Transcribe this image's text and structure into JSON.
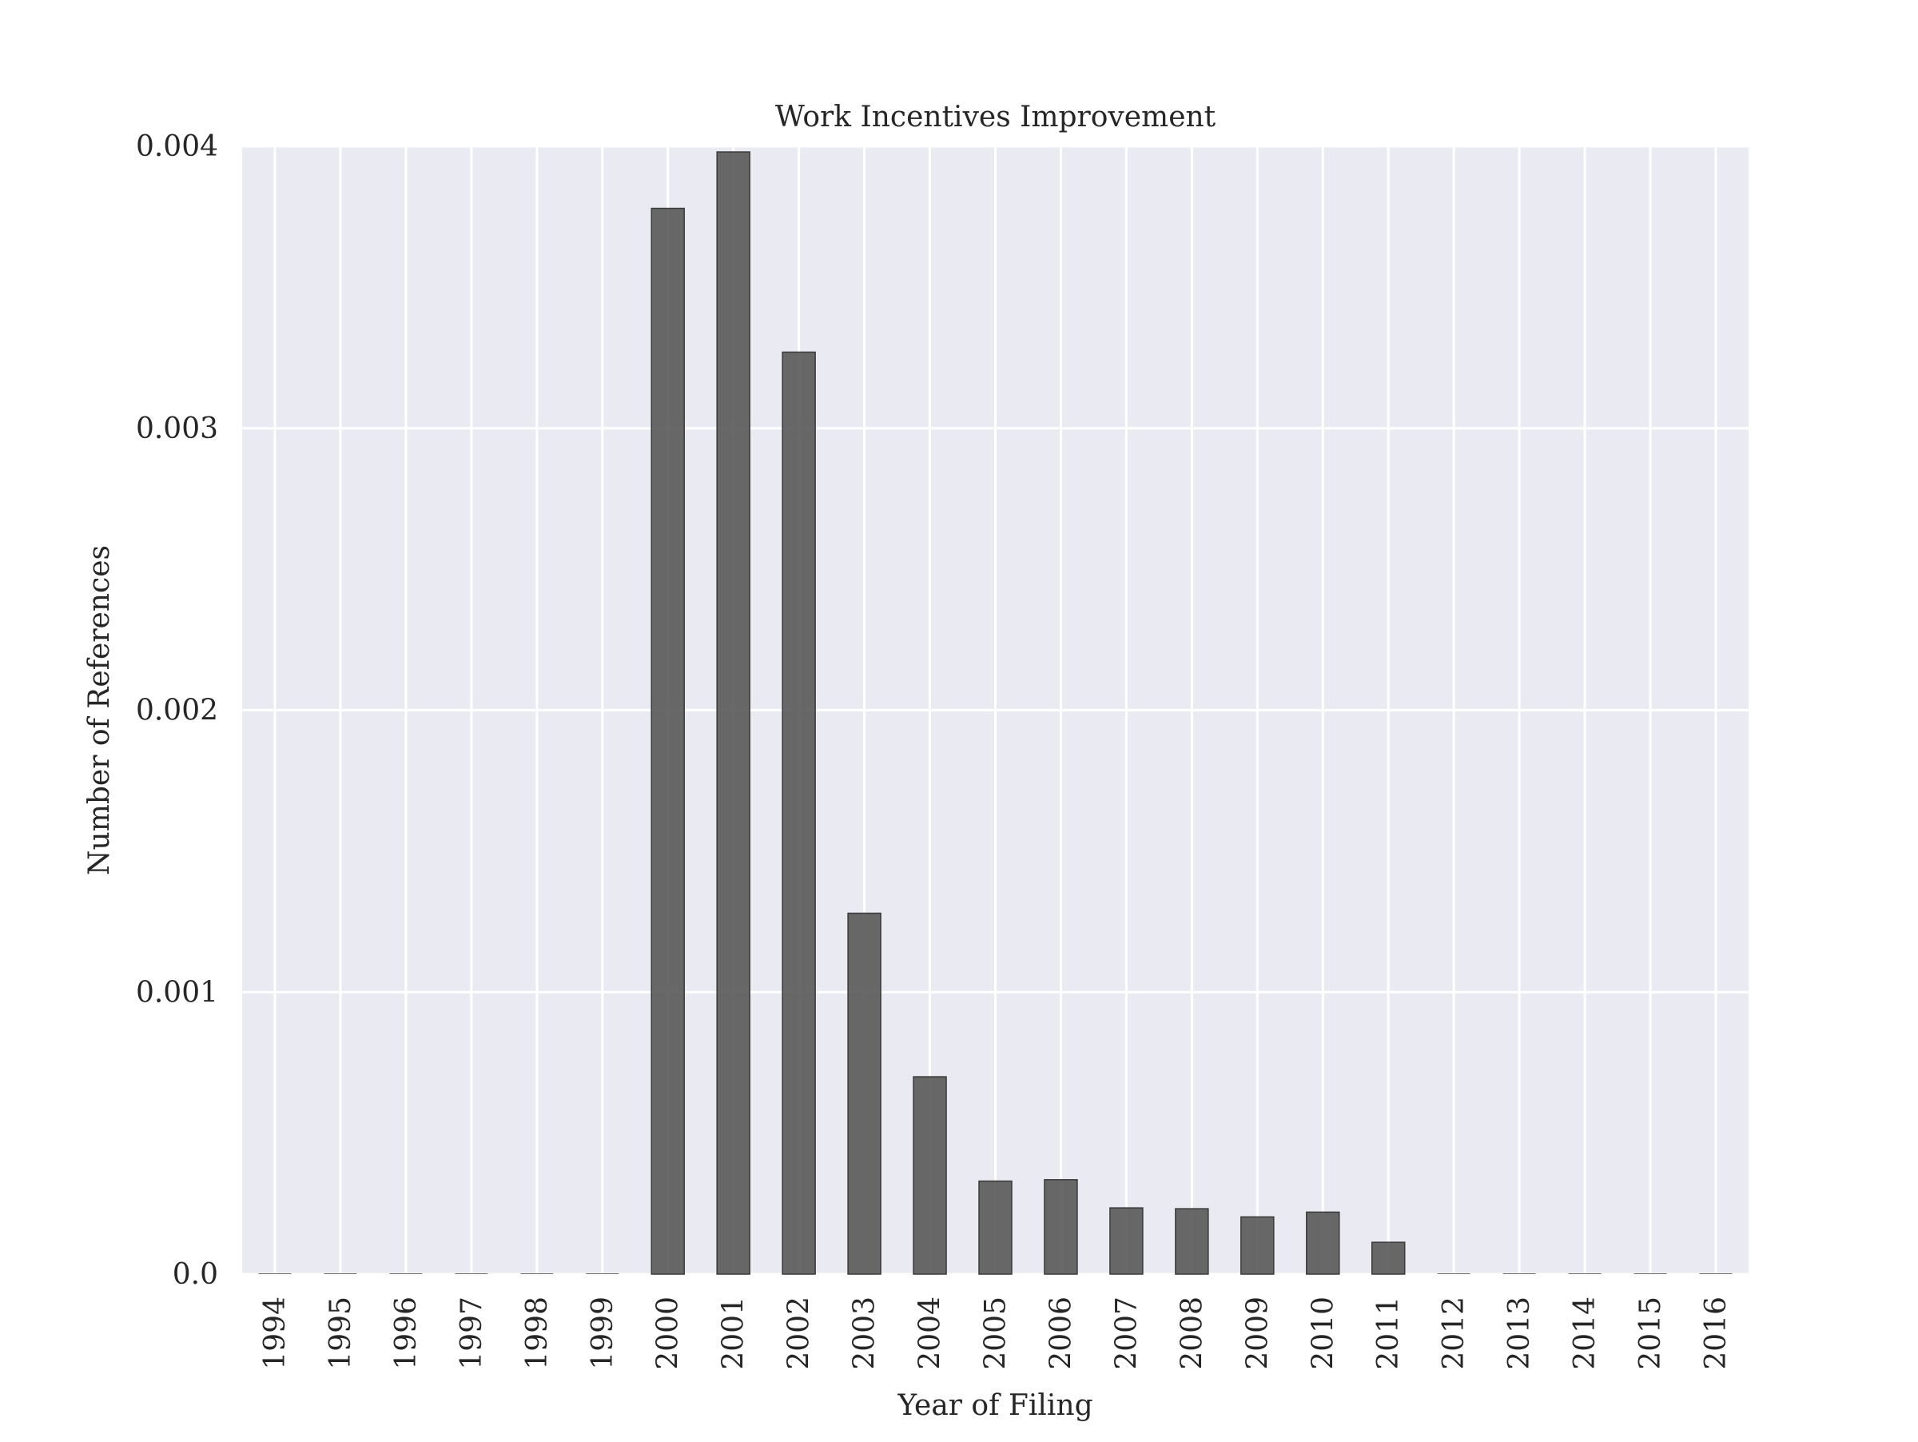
{
  "chart_data": {
    "type": "bar",
    "title": "Work Incentives Improvement",
    "xlabel": "Year of Filing",
    "ylabel": "Number of References",
    "categories": [
      "1994",
      "1995",
      "1996",
      "1997",
      "1998",
      "1999",
      "2000",
      "2001",
      "2002",
      "2003",
      "2004",
      "2005",
      "2006",
      "2007",
      "2008",
      "2009",
      "2010",
      "2011",
      "2012",
      "2013",
      "2014",
      "2015",
      "2016"
    ],
    "values": [
      0,
      0,
      0,
      0,
      0,
      0,
      0.00378,
      0.00398,
      0.00327,
      0.00128,
      0.0007,
      0.00033,
      0.000335,
      0.000235,
      0.000232,
      0.000203,
      0.00022,
      0.000113,
      0,
      0,
      0,
      0,
      0
    ],
    "ylim": [
      0,
      0.004
    ],
    "yticks": [
      0,
      0.001,
      0.002,
      0.003,
      0.004
    ],
    "ytick_labels": [
      "0.0",
      "0.001",
      "0.002",
      "0.003",
      "0.004"
    ],
    "grid": true,
    "colors": {
      "background": "#eaeaf2",
      "grid": "#ffffff",
      "bar": "#595959",
      "bar_edge": "#3a3a3a",
      "text": "#262626"
    }
  }
}
